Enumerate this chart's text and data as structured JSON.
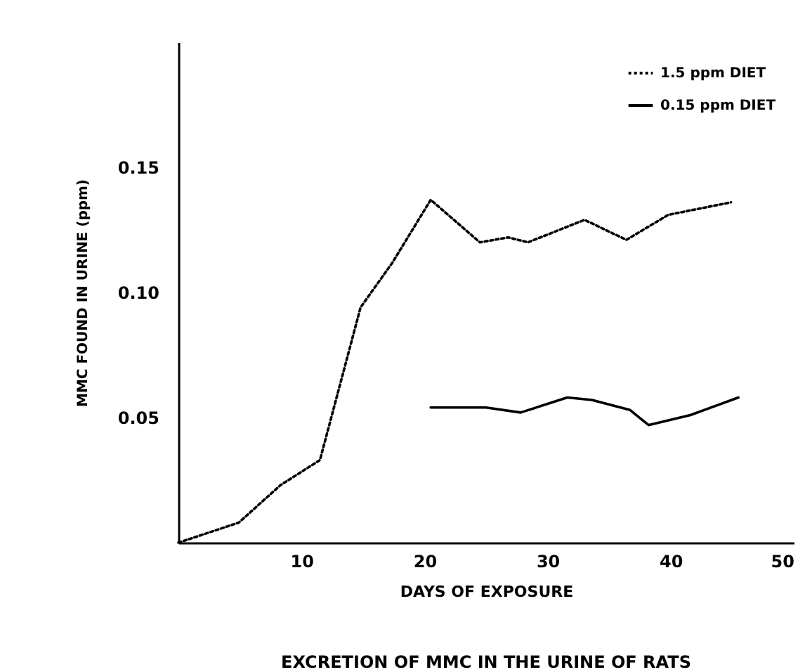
{
  "chart_data": {
    "type": "line",
    "title": "EXCRETION OF MMC IN THE URINE OF RATS",
    "xlabel": "DAYS OF EXPOSURE",
    "ylabel": "MMC FOUND IN URINE (ppm)",
    "xlim": [
      0,
      50
    ],
    "xticks": [
      10,
      20,
      30,
      40,
      50
    ],
    "ylim": [
      0,
      0.2
    ],
    "yticks": [
      {
        "value": 0.05,
        "label": "0.05"
      },
      {
        "value": 0.1,
        "label": "0.10"
      },
      {
        "value": 0.15,
        "label": "0.15"
      }
    ],
    "grid": false,
    "legend": "top right",
    "marker": "none",
    "series": [
      {
        "name": "1.5 ppm DIET",
        "color": "#000000",
        "line_style": "dotted",
        "x": [
          0,
          4.9,
          8.3,
          11.5,
          14.8,
          17.4,
          20.5,
          24.5,
          26.8,
          28.4,
          33,
          36.4,
          39.8,
          44.9
        ],
        "values": [
          0,
          0.008,
          0.023,
          0.033,
          0.094,
          0.112,
          0.137,
          0.12,
          0.122,
          0.12,
          0.129,
          0.121,
          0.131,
          0.136
        ]
      },
      {
        "name": "0.15 ppm DIET",
        "color": "#000000",
        "line_style": "solid",
        "x": [
          20.5,
          25,
          27.8,
          31.6,
          33.6,
          36.7,
          38.2,
          41.6,
          45.5
        ],
        "values": [
          0.054,
          0.054,
          0.052,
          0.058,
          0.057,
          0.053,
          0.047,
          0.051,
          0.058
        ]
      }
    ]
  }
}
